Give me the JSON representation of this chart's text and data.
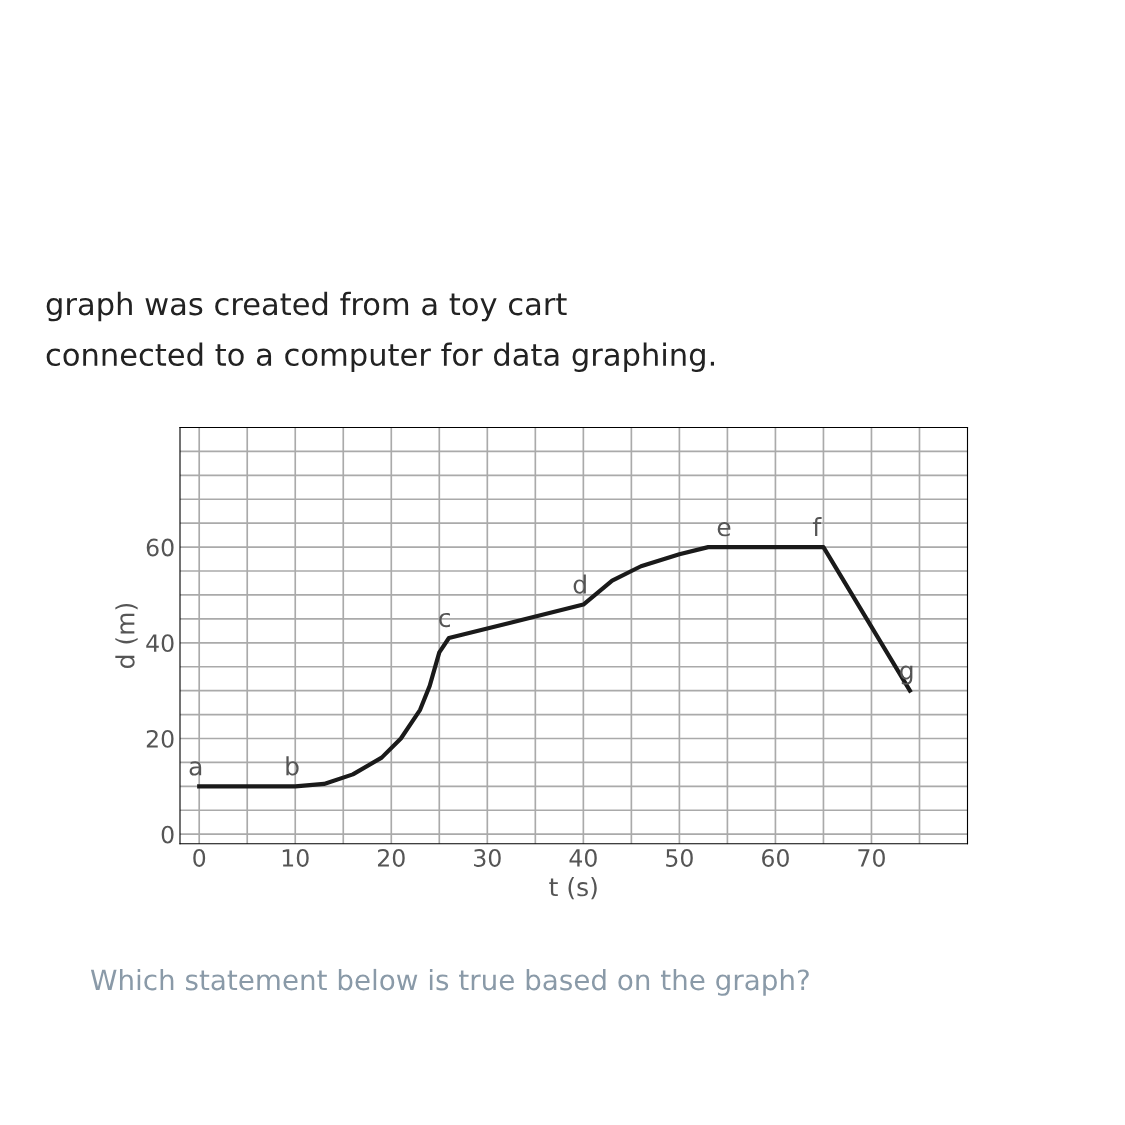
{
  "chart_data": {
    "type": "line",
    "title": "graph was created from a toy cart",
    "subtitle": "connected to a computer for data graphing.",
    "xlabel": "t (s)",
    "ylabel": "d (m)",
    "series": [
      {
        "color": "#1a1a1a",
        "x": [
          0,
          10,
          13,
          16,
          19,
          21,
          23,
          24,
          25,
          26,
          40,
          43,
          46,
          50,
          53,
          55,
          65,
          74
        ],
        "values": [
          10,
          10,
          10.5,
          12.5,
          16,
          20,
          26,
          31,
          38,
          41,
          48,
          53,
          56,
          58.5,
          60,
          60,
          60,
          30
        ]
      }
    ],
    "xlim": [
      -2,
      80
    ],
    "ylim": [
      -2,
      85
    ],
    "xticks": [
      0,
      {
        "value": 5,
        "label": null
      },
      10,
      {
        "value": 15,
        "label": null
      },
      20,
      {
        "value": 25,
        "label": null
      },
      30,
      {
        "value": 35,
        "label": null
      },
      40,
      {
        "value": 45,
        "label": null
      },
      50,
      {
        "value": 55,
        "label": null
      },
      60,
      {
        "value": 65,
        "label": null
      },
      70,
      {
        "value": 75,
        "label": null
      }
    ],
    "yticks": [
      0,
      {
        "value": 5,
        "label": null
      },
      {
        "value": 10,
        "label": null
      },
      {
        "value": 15,
        "label": null
      },
      20,
      {
        "value": 25,
        "label": null
      },
      {
        "value": 30,
        "label": null
      },
      {
        "value": 35,
        "label": null
      },
      40,
      {
        "value": 45,
        "label": null
      },
      {
        "value": 50,
        "label": null
      },
      {
        "value": 55,
        "label": null
      },
      60,
      {
        "value": 65,
        "label": null
      },
      {
        "value": 70,
        "label": null
      },
      {
        "value": 75,
        "label": null
      },
      {
        "value": 80,
        "label": null
      }
    ],
    "grid": true,
    "marker": "none",
    "line_style": "solid",
    "annotations": [
      {
        "text": "a",
        "x": 0,
        "y": 10
      },
      {
        "text": "b",
        "x": 10,
        "y": 10
      },
      {
        "text": "c",
        "x": 26,
        "y": 41
      },
      {
        "text": "d",
        "x": 40,
        "y": 48
      },
      {
        "text": "e",
        "x": 55,
        "y": 60
      },
      {
        "text": "f",
        "x": 65,
        "y": 60
      },
      {
        "text": "g",
        "x": 74,
        "y": 30
      },
      "Which statement below is true based on the graph?"
    ]
  }
}
